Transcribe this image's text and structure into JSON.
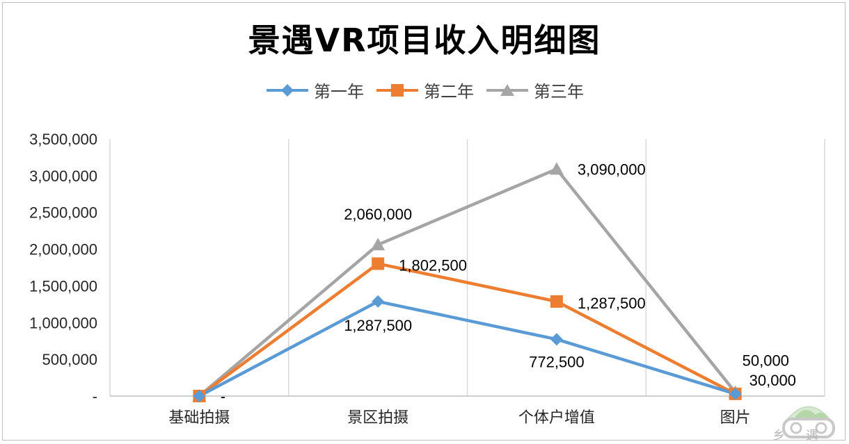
{
  "chart_data": {
    "type": "line",
    "title": "景遇VR项目收入明细图",
    "categories": [
      "基础拍摄",
      "景区拍摄",
      "个体户增值",
      "图片"
    ],
    "ylim": [
      0,
      3500000
    ],
    "yticks": [
      0,
      500000,
      1000000,
      1500000,
      2000000,
      2500000,
      3000000,
      3500000
    ],
    "ytick_labels": [
      "-",
      "500,000",
      "1,000,000",
      "1,500,000",
      "2,000,000",
      "2,500,000",
      "3,000,000",
      "3,500,000"
    ],
    "grid": "vertical",
    "legend_position": "top",
    "series": [
      {
        "name": "第一年",
        "color": "#5b9bd5",
        "marker": "diamond",
        "values": [
          0,
          1287500,
          772500,
          30000
        ],
        "labels": [
          "-",
          "1,287,500",
          "772,500",
          "30,000"
        ]
      },
      {
        "name": "第二年",
        "color": "#ed7d31",
        "marker": "square",
        "values": [
          0,
          1802500,
          1287500,
          30000
        ],
        "labels": [
          "",
          "1,802,500",
          "1,287,500",
          ""
        ]
      },
      {
        "name": "第三年",
        "color": "#a5a5a5",
        "marker": "triangle",
        "values": [
          0,
          2060000,
          3090000,
          50000
        ],
        "labels": [
          "",
          "2,060,000",
          "3,090,000",
          "50,000"
        ]
      }
    ]
  },
  "watermark": {
    "text": "乡遇",
    "icon": "vr-headset-logo-icon"
  }
}
